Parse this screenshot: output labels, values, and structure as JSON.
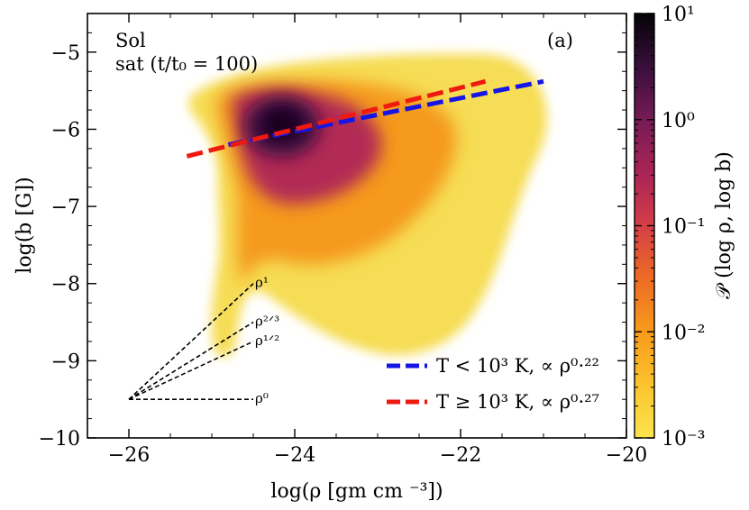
{
  "chart_data": {
    "type": "heatmap",
    "title": "",
    "xlabel": "log(ρ [gm cm ⁻³])",
    "ylabel": "log(b [G])",
    "xlim": [
      -26.5,
      -20
    ],
    "ylim": [
      -10,
      -4.5
    ],
    "x_ticks": [
      {
        "value": -26,
        "label": "−26"
      },
      {
        "value": -24,
        "label": "−24"
      },
      {
        "value": -22,
        "label": "−22"
      },
      {
        "value": -20,
        "label": "−20"
      }
    ],
    "y_ticks": [
      {
        "value": -10,
        "label": "−10"
      },
      {
        "value": -9,
        "label": "−9"
      },
      {
        "value": -8,
        "label": "−8"
      },
      {
        "value": -7,
        "label": "−7"
      },
      {
        "value": -6,
        "label": "−6"
      },
      {
        "value": -5,
        "label": "−5"
      }
    ],
    "annotations": {
      "top_left_line1": "Sol",
      "top_left_line2": "sat (t/t₀ = 100)",
      "panel_label": "(a)"
    },
    "colorbar": {
      "label": "𝒫 (log ρ, log b)",
      "scale": "log",
      "range": [
        0.001,
        10
      ],
      "colormap": "inferno_r",
      "ticks": [
        {
          "value": 10,
          "label": "10¹"
        },
        {
          "value": 1,
          "label": "10⁰"
        },
        {
          "value": 0.1,
          "label": "10⁻¹"
        },
        {
          "value": 0.01,
          "label": "10⁻²"
        },
        {
          "value": 0.001,
          "label": "10⁻³"
        }
      ]
    },
    "distribution": {
      "peak_value": 3,
      "peak_log_rho": -24.1,
      "peak_log_b": -5.95,
      "description_regions": []
    },
    "fit_lines": [
      {
        "name": "T < 10³ K, ∝ ρ^0.22",
        "color": "#1515e6",
        "style": "dashed",
        "x": [
          -24.8,
          -21.0
        ],
        "y": [
          -6.2,
          -5.38
        ],
        "slope": 0.22
      },
      {
        "name": "T ≥ 10³ K, ∝ ρ^0.27",
        "color": "#ee1a0f",
        "style": "dashed",
        "x": [
          -25.3,
          -21.7
        ],
        "y": [
          -6.35,
          -5.38
        ],
        "slope": 0.27
      }
    ],
    "legend": {
      "placement": "lower-right",
      "entries": [
        {
          "label": "T < 10³ K, ∝ ρ⁰·²²",
          "color": "#1515e6"
        },
        {
          "label": "T ≥ 10³ K, ∝ ρ⁰·²⁷",
          "color": "#ee1a0f"
        }
      ]
    },
    "slope_guides": {
      "origin": [
        -26.0,
        -9.5
      ],
      "x_end": -24.5,
      "lines": [
        {
          "label": "ρ¹",
          "slope": 1
        },
        {
          "label": "ρ²ᐟ³",
          "slope": 0.6667
        },
        {
          "label": "ρ¹ᐟ²",
          "slope": 0.5
        },
        {
          "label": "ρ⁰",
          "slope": 0
        }
      ]
    }
  }
}
